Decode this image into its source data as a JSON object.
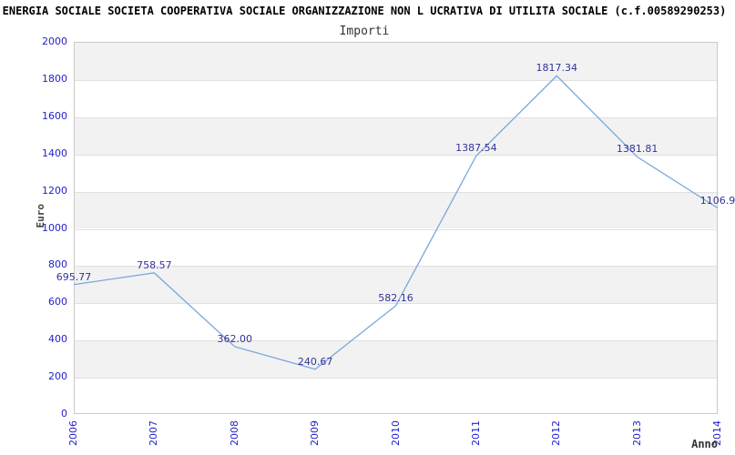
{
  "title": "ENERGIA SOCIALE SOCIETA COOPERATIVA SOCIALE ORGANIZZAZIONE NON L UCRATIVA DI UTILITA SOCIALE (c.f.00589290253)",
  "chart_data": {
    "type": "line",
    "title": "Importi",
    "xlabel": "Anno",
    "ylabel": "Euro",
    "categories": [
      "2006",
      "2007",
      "2008",
      "2009",
      "2010",
      "2011",
      "2012",
      "2013",
      "2014"
    ],
    "values": [
      695.77,
      758.57,
      362.0,
      240.67,
      582.16,
      1387.54,
      1817.34,
      1381.81,
      1106.9
    ],
    "point_labels": [
      "695.77",
      "758.57",
      "362.00",
      "240.67",
      "582.16",
      "1387.54",
      "1817.34",
      "1381.81",
      "1106.9"
    ],
    "ylim": [
      0,
      2000
    ],
    "yticks": [
      0,
      200,
      400,
      600,
      800,
      1000,
      1200,
      1400,
      1600,
      1800,
      2000
    ],
    "grid": true,
    "legend_position": "none",
    "colors": {
      "line": "#7aa8dc",
      "tick_label": "#2222cc",
      "data_label": "#333399",
      "band": "#f2f2f2",
      "gridline": "#e0e0e0",
      "plot_border": "#c9c9c9"
    }
  }
}
